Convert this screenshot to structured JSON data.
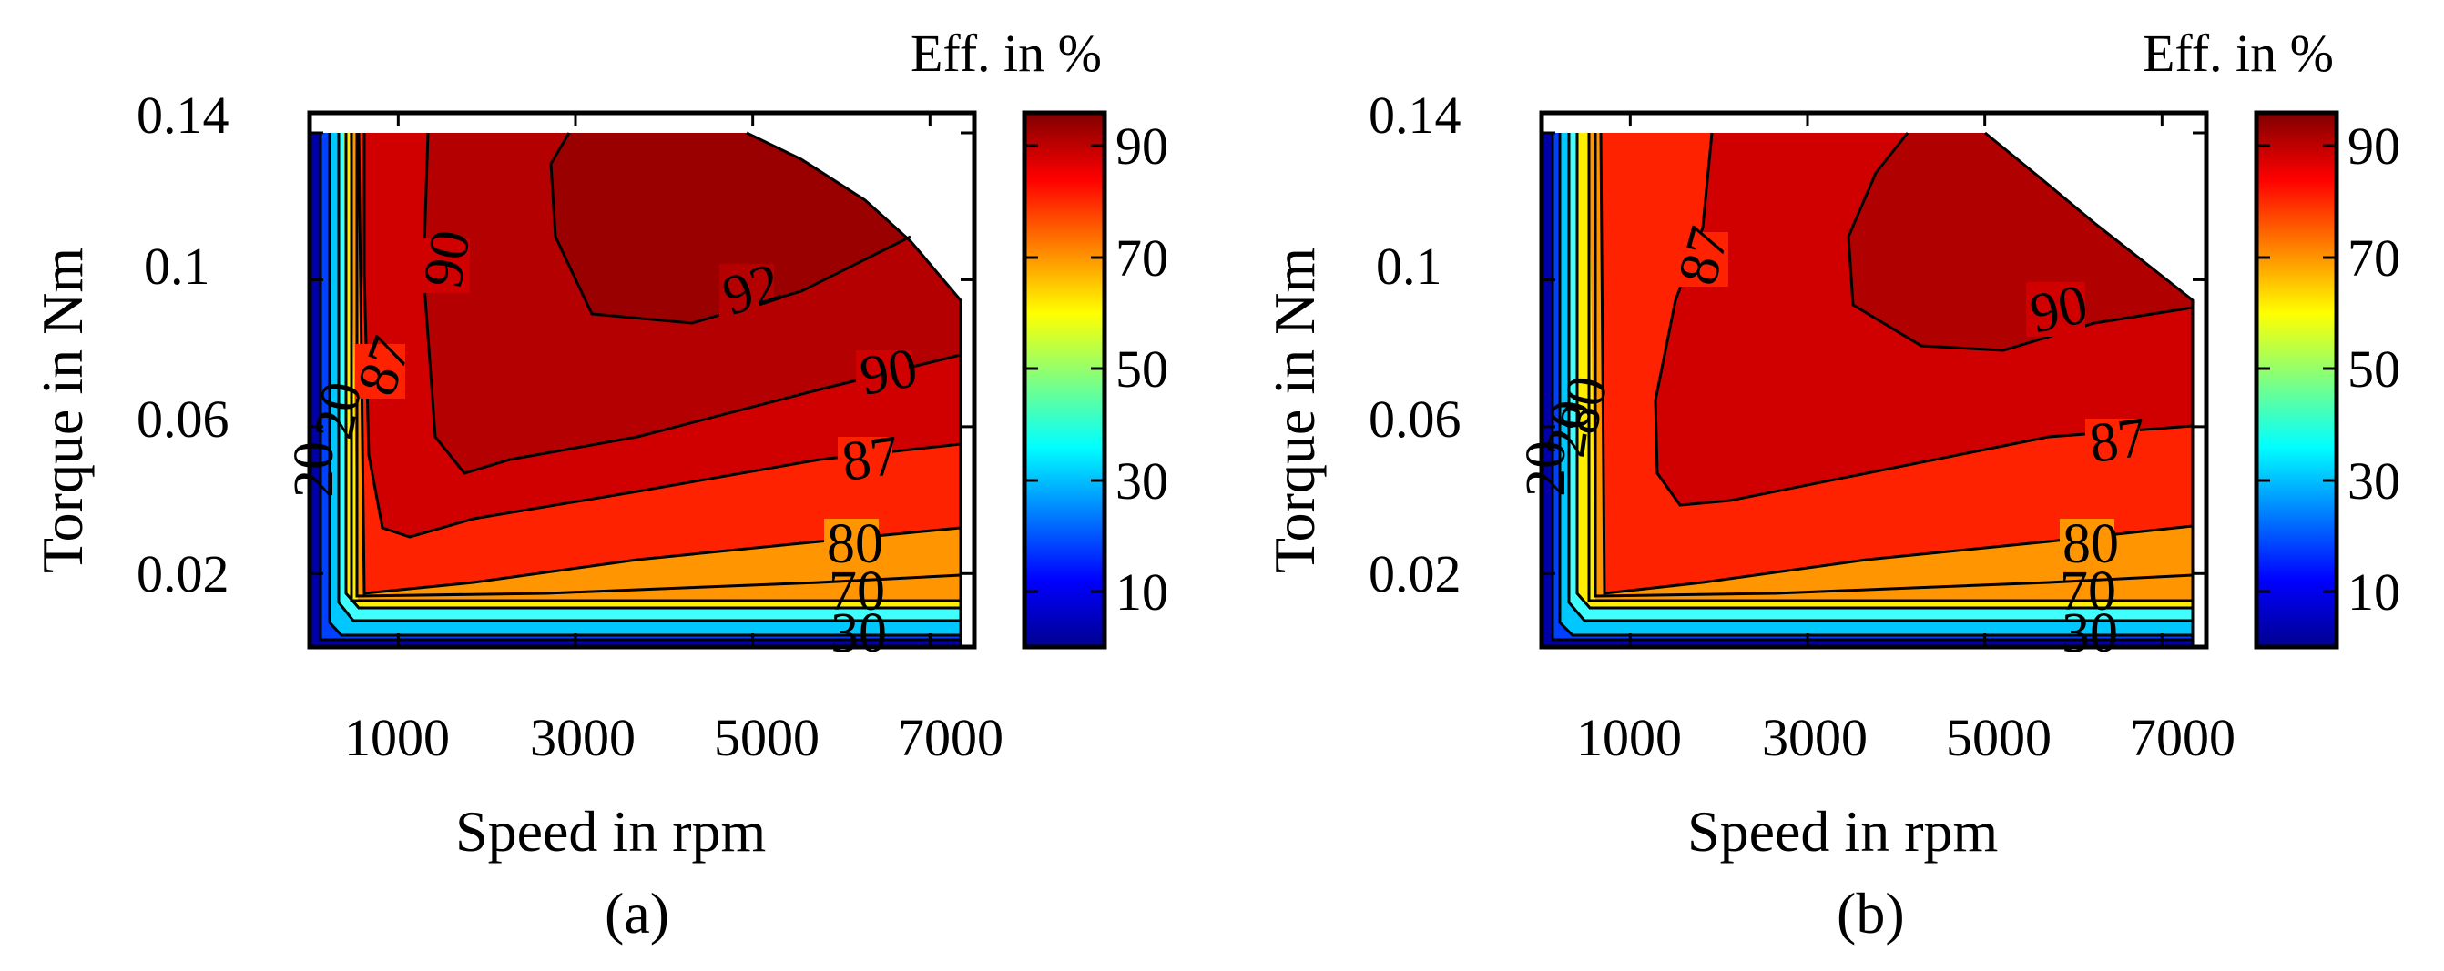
{
  "chart_data": [
    {
      "type": "contour",
      "subplot_label": "(a)",
      "xlabel": "Speed in rpm",
      "ylabel": "Torque in Nm",
      "xlim": [
        0,
        7500
      ],
      "ylim": [
        0,
        0.14
      ],
      "xticks": [
        "1000",
        "3000",
        "5000",
        "7000"
      ],
      "yticks": [
        "0.02",
        "0.06",
        "0.1",
        "0.14"
      ],
      "colorbar_title": "Eff. in %",
      "colorbar_ticks": [
        "10",
        "30",
        "50",
        "70",
        "90"
      ],
      "colorbar_range": [
        0,
        96
      ],
      "contour_levels": [
        10,
        20,
        30,
        50,
        70,
        80,
        87,
        90,
        92
      ],
      "contour_labels": [
        "20",
        "20",
        "30",
        "70",
        "80",
        "87",
        "87",
        "90",
        "90",
        "92"
      ],
      "max_speed": 7000,
      "max_torque": 0.14,
      "peak_efficiency_region": "92 % near 3000-5500 rpm, 0.1-0.14 Nm"
    },
    {
      "type": "contour",
      "subplot_label": "(b)",
      "xlabel": "Speed in rpm",
      "ylabel": "Torque in Nm",
      "xlim": [
        0,
        7500
      ],
      "ylim": [
        0,
        0.14
      ],
      "xticks": [
        "1000",
        "3000",
        "5000",
        "7000"
      ],
      "yticks": [
        "0.02",
        "0.06",
        "0.1",
        "0.14"
      ],
      "colorbar_title": "Eff. in %",
      "colorbar_ticks": [
        "10",
        "30",
        "50",
        "70",
        "90"
      ],
      "colorbar_range": [
        0,
        96
      ],
      "contour_levels": [
        10,
        20,
        30,
        50,
        70,
        80,
        87,
        90
      ],
      "contour_labels": [
        "20",
        "20",
        "30",
        "70",
        "80",
        "80",
        "87",
        "87",
        "90"
      ],
      "max_speed": 7000,
      "max_torque": 0.14,
      "peak_efficiency_region": "90 % near 3500-6500 rpm, 0.09-0.14 Nm"
    }
  ]
}
